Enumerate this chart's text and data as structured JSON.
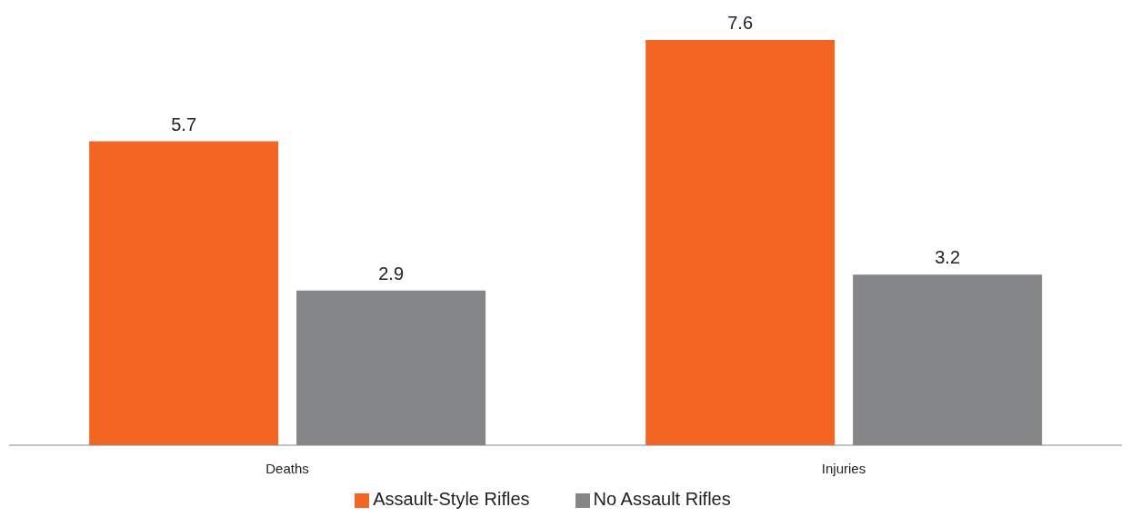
{
  "chart_data": {
    "type": "bar",
    "categories": [
      "Deaths",
      "Injuries"
    ],
    "series": [
      {
        "name": "Assault-Style Rifles",
        "color": "#f26522",
        "values": [
          5.7,
          7.6
        ]
      },
      {
        "name": "No Assault Rifles",
        "color": "#858688",
        "values": [
          2.9,
          3.2
        ]
      }
    ],
    "data_labels": true,
    "legend": "bottom",
    "grid": false
  }
}
